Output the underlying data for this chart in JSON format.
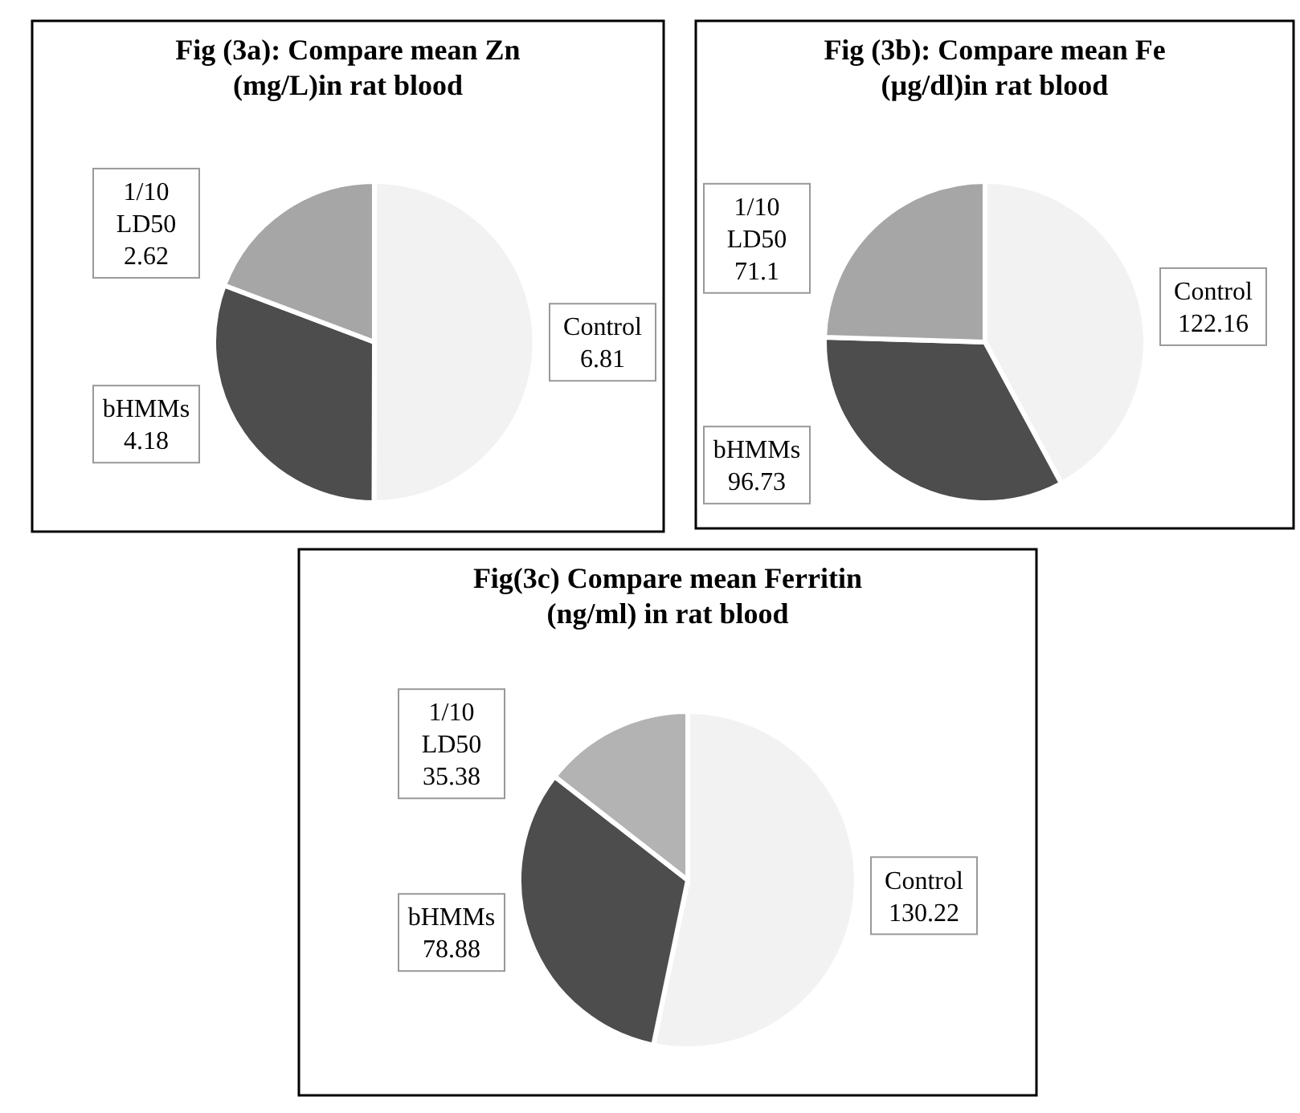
{
  "chart_data": [
    {
      "type": "pie",
      "title": "Fig (3a): Compare mean Zn (mg/L)in rat blood",
      "categories": [
        "Control",
        "bHMMs",
        "1/10 LD50"
      ],
      "values": [
        6.81,
        4.18,
        2.62
      ],
      "colors": [
        "#f2f2f2",
        "#4d4d4d",
        "#a6a6a6"
      ],
      "data_labels": true
    },
    {
      "type": "pie",
      "title": "Fig (3b): Compare mean Fe (µg/dl)in rat blood",
      "categories": [
        "Control",
        "bHMMs",
        "1/10 LD50"
      ],
      "values": [
        122.16,
        96.73,
        71.1
      ],
      "colors": [
        "#f2f2f2",
        "#4d4d4d",
        "#a6a6a6"
      ],
      "data_labels": true
    },
    {
      "type": "pie",
      "title": "Fig(3c) Compare mean Ferritin (ng/ml) in rat blood",
      "categories": [
        "Control",
        "bHMMs",
        "1/10 LD50"
      ],
      "values": [
        130.22,
        78.88,
        35.38
      ],
      "colors": [
        "#f2f2f2",
        "#4d4d4d",
        "#b3b3b3"
      ],
      "data_labels": true
    }
  ]
}
